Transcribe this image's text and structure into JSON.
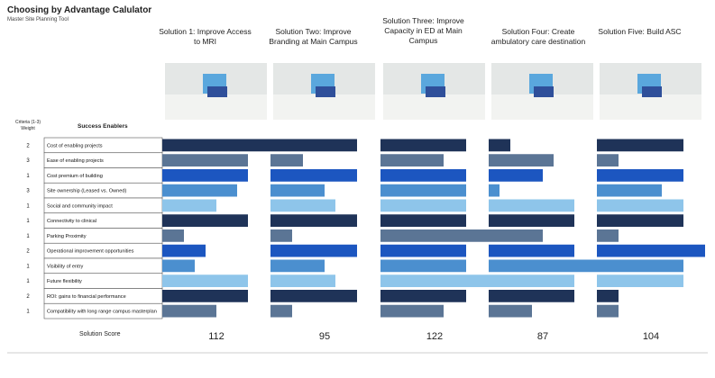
{
  "chart_data": {
    "type": "bar",
    "title": "Choosing by Advantage Calulator",
    "subtitle": "Master Site Planning Tool",
    "weight_header": "Criteria (1-3) Weight",
    "category_header": "Success Enablers",
    "score_label": "Solution Score",
    "categories": [
      "Cost of enabling projects",
      "Ease of enabling projects",
      "Cost premium of building",
      "Site ownership (Leased vs. Owned)",
      "Social and community impact",
      "Connectivity to clinical",
      "Parking Proximity",
      "Operational improvement opportunities",
      "Visibility of entry",
      "Future flexibility",
      "ROI: gains to financial performance",
      "Compatibility with long range campus masterplan"
    ],
    "weights": [
      2,
      3,
      1,
      3,
      1,
      1,
      1,
      2,
      1,
      1,
      2,
      1
    ],
    "row_colors": [
      "#1f3358",
      "#5b7595",
      "#1c56c0",
      "#4b8fcf",
      "#8ec5ea",
      "#1f3358",
      "#5b7595",
      "#1c56c0",
      "#4b8fcf",
      "#8ec5ea",
      "#1f3358",
      "#5b7595"
    ],
    "xlim": [
      0,
      120
    ],
    "series": [
      {
        "name": "Solution 1: Improve Access to MRI",
        "score": 112,
        "values": [
          120,
          95,
          95,
          83,
          60,
          95,
          24,
          48,
          36,
          95,
          95,
          60
        ]
      },
      {
        "name": "Solution Two: Improve Branding at Main Campus",
        "score": 95,
        "values": [
          96,
          36,
          96,
          60,
          72,
          96,
          24,
          96,
          60,
          72,
          96,
          24
        ]
      },
      {
        "name": "Solution Three: Improve Capacity in ED at Main Campus",
        "score": 122,
        "values": [
          95,
          70,
          95,
          95,
          95,
          95,
          120,
          95,
          95,
          120,
          95,
          70
        ]
      },
      {
        "name": "Solution Four: Create ambulatory care destination",
        "score": 87,
        "values": [
          24,
          72,
          60,
          12,
          95,
          95,
          60,
          95,
          120,
          95,
          95,
          48
        ]
      },
      {
        "name": "Solution Five: Build ASC",
        "score": 104,
        "values": [
          96,
          24,
          96,
          72,
          96,
          96,
          24,
          120,
          96,
          96,
          24,
          24
        ]
      }
    ]
  }
}
